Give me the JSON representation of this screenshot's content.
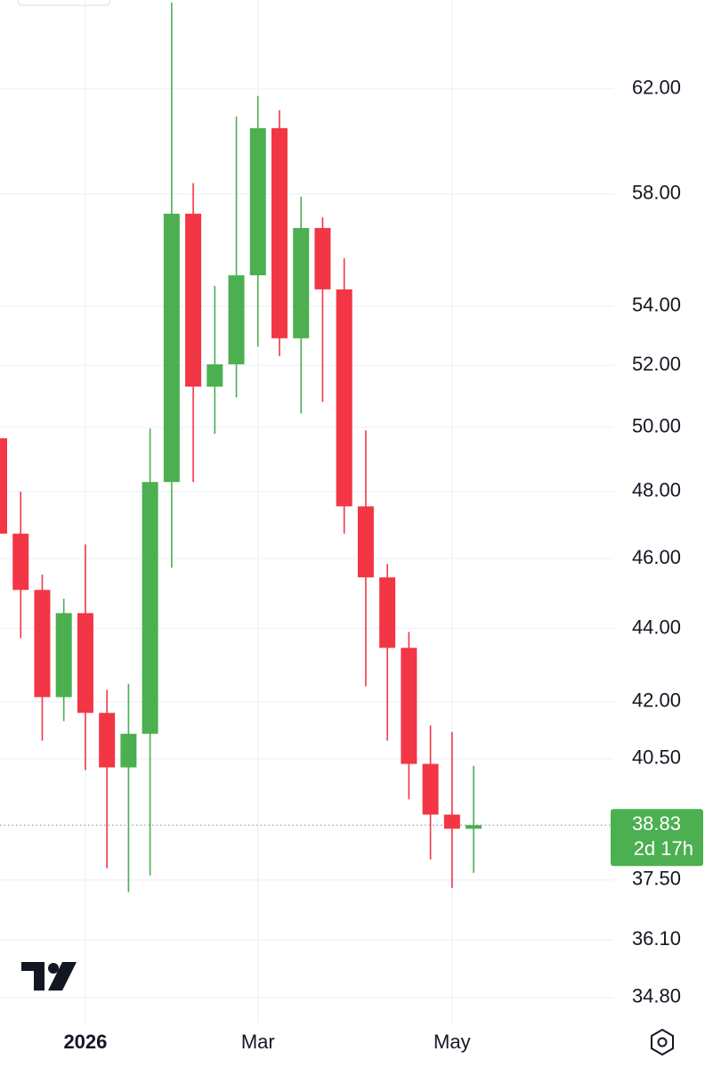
{
  "chart_data": {
    "type": "candlestick",
    "categories": [
      null,
      null,
      null,
      null,
      "2026",
      null,
      null,
      null,
      null,
      null,
      null,
      null,
      "Mar",
      null,
      null,
      null,
      null,
      null,
      null,
      null,
      null,
      "May",
      null
    ],
    "open": [
      49.65,
      46.73,
      45.09,
      42.12,
      44.43,
      41.7,
      40.28,
      41.15,
      48.29,
      57.27,
      51.31,
      52.04,
      55.07,
      60.47,
      52.91,
      56.75,
      54.58,
      47.55,
      45.45,
      43.46,
      40.37,
      39.09,
      38.74
    ],
    "high": [
      49.8,
      47.99,
      45.53,
      44.84,
      46.41,
      42.31,
      42.48,
      49.96,
      65.5,
      58.39,
      54.7,
      60.92,
      61.72,
      61.16,
      57.89,
      57.14,
      55.67,
      49.9,
      45.84,
      43.9,
      41.37,
      41.2,
      40.32
    ],
    "low": [
      46.5,
      43.73,
      40.97,
      41.48,
      40.21,
      37.78,
      37.21,
      37.61,
      45.73,
      48.29,
      49.79,
      50.96,
      52.63,
      52.31,
      50.44,
      50.81,
      46.73,
      42.41,
      40.97,
      39.47,
      37.99,
      37.31,
      37.67
    ],
    "close": [
      46.73,
      45.09,
      42.12,
      44.43,
      41.7,
      40.28,
      41.15,
      48.29,
      57.27,
      51.31,
      52.04,
      55.07,
      60.47,
      52.91,
      56.75,
      54.58,
      47.55,
      45.45,
      43.46,
      40.37,
      39.09,
      38.74,
      38.83
    ],
    "up_color": "#4caf50",
    "down_color": "#f23645",
    "ylim": [
      34.25,
      65.6
    ],
    "log_scale": true,
    "grid": true,
    "yticks": [
      {
        "value": 62,
        "label": "62.00"
      },
      {
        "value": 58,
        "label": "58.00"
      },
      {
        "value": 54,
        "label": "54.00"
      },
      {
        "value": 52,
        "label": "52.00"
      },
      {
        "value": 50,
        "label": "50.00"
      },
      {
        "value": 48,
        "label": "48.00"
      },
      {
        "value": 46,
        "label": "46.00"
      },
      {
        "value": 44,
        "label": "44.00"
      },
      {
        "value": 42,
        "label": "42.00"
      },
      {
        "value": 40.5,
        "label": "40.50"
      },
      {
        "value": 37.5,
        "label": "37.50"
      },
      {
        "value": 36.1,
        "label": "36.10"
      },
      {
        "value": 34.8,
        "label": "34.80"
      }
    ],
    "last_price": 38.83,
    "countdown": "2d 17h"
  }
}
